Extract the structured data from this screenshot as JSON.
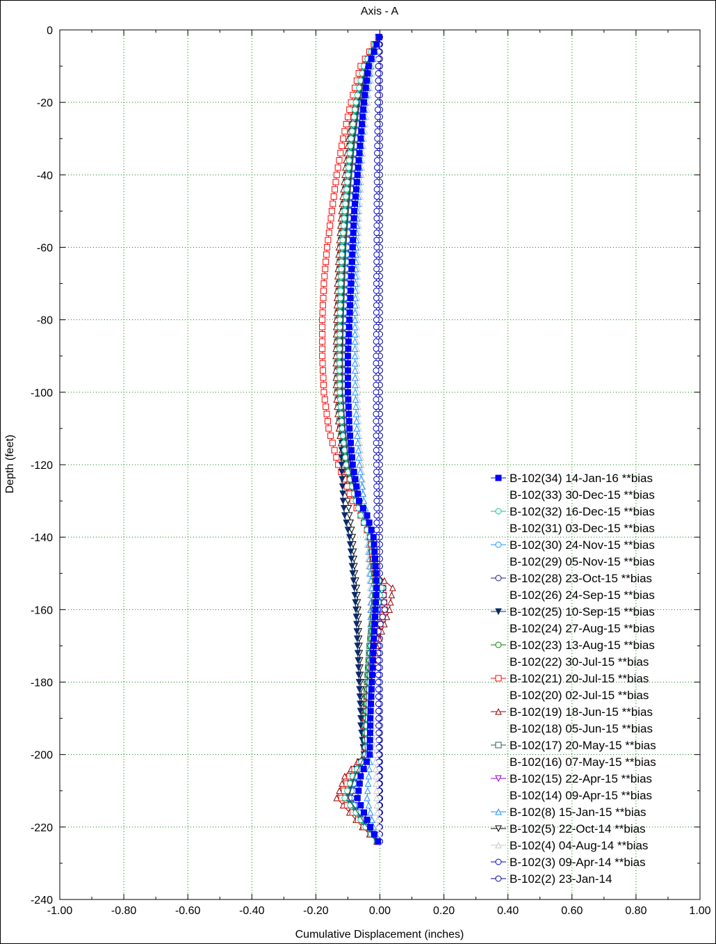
{
  "chart_data": {
    "type": "line",
    "title": "Axis - A",
    "xlabel": "Cumulative Displacement (inches)",
    "ylabel": "Depth (feet)",
    "xlim": [
      -1.0,
      1.0
    ],
    "ylim": [
      -240,
      0
    ],
    "xticks": [
      -1.0,
      -0.8,
      -0.6,
      -0.4,
      -0.2,
      0.0,
      0.2,
      0.4,
      0.6,
      0.8,
      1.0
    ],
    "xtick_labels": [
      "-1.00",
      "-0.80",
      "-0.60",
      "-0.40",
      "-0.20",
      "0.00",
      "0.20",
      "0.40",
      "0.60",
      "0.80",
      "1.00"
    ],
    "yticks": [
      0,
      -20,
      -40,
      -60,
      -80,
      -100,
      -120,
      -140,
      -160,
      -180,
      -200,
      -220,
      -240
    ],
    "ytick_labels": [
      "0",
      "-20",
      "-40",
      "-60",
      "-80",
      "-100",
      "-120",
      "-140",
      "-160",
      "-180",
      "-200",
      "-220",
      "-240"
    ],
    "grid": true,
    "legend_position": "right",
    "depth_profile": [
      -2,
      -10,
      -20,
      -30,
      -40,
      -50,
      -60,
      -70,
      -80,
      -90,
      -100,
      -110,
      -120,
      -130,
      -134,
      -140,
      -150,
      -154,
      -160,
      -170,
      -180,
      -190,
      -192,
      -200,
      -206,
      -212,
      -216,
      -220,
      -224
    ],
    "series": [
      {
        "name": "B-102(34) 14-Jan-16 **bias",
        "color": "#0000ff",
        "marker": "square-filled",
        "x": [
          -0.002,
          -0.035,
          -0.05,
          -0.06,
          -0.07,
          -0.08,
          -0.085,
          -0.09,
          -0.095,
          -0.1,
          -0.1,
          -0.095,
          -0.085,
          -0.065,
          -0.04,
          -0.02,
          -0.012,
          -0.01,
          -0.014,
          -0.02,
          -0.025,
          -0.03,
          -0.03,
          -0.032,
          -0.06,
          -0.07,
          -0.05,
          -0.03,
          -0.006
        ]
      },
      {
        "name": "B-102(33) 30-Dec-15 **bias",
        "color": "#3a3a3a",
        "marker": "none",
        "x": [
          -0.004,
          -0.045,
          -0.065,
          -0.08,
          -0.09,
          -0.1,
          -0.108,
          -0.112,
          -0.116,
          -0.118,
          -0.118,
          -0.11,
          -0.098,
          -0.072,
          -0.045,
          -0.025,
          -0.015,
          -0.012,
          -0.018,
          -0.03,
          -0.04,
          -0.045,
          -0.05,
          -0.045,
          -0.08,
          -0.1,
          -0.07,
          -0.04,
          -0.008
        ]
      },
      {
        "name": "B-102(32) 16-Dec-15 **bias",
        "color": "#00c890",
        "marker": "circle",
        "x": [
          -0.004,
          -0.05,
          -0.075,
          -0.09,
          -0.1,
          -0.11,
          -0.118,
          -0.122,
          -0.125,
          -0.126,
          -0.125,
          -0.118,
          -0.105,
          -0.075,
          -0.06,
          -0.03,
          -0.012,
          0.005,
          -0.01,
          -0.028,
          -0.036,
          -0.042,
          -0.045,
          -0.045,
          -0.085,
          -0.11,
          -0.075,
          -0.045,
          -0.009
        ]
      },
      {
        "name": "B-102(31) 03-Dec-15 **bias",
        "color": "#505050",
        "marker": "none",
        "x": [
          -0.003,
          -0.042,
          -0.062,
          -0.078,
          -0.088,
          -0.098,
          -0.106,
          -0.11,
          -0.114,
          -0.116,
          -0.116,
          -0.108,
          -0.096,
          -0.07,
          -0.046,
          -0.024,
          -0.014,
          -0.01,
          -0.016,
          -0.028,
          -0.038,
          -0.044,
          -0.048,
          -0.044,
          -0.078,
          -0.098,
          -0.068,
          -0.04,
          -0.007
        ]
      },
      {
        "name": "B-102(30) 24-Nov-15 **bias",
        "color": "#1e90ff",
        "marker": "circle",
        "x": [
          -0.003,
          -0.04,
          -0.06,
          -0.075,
          -0.085,
          -0.095,
          -0.103,
          -0.108,
          -0.112,
          -0.114,
          -0.114,
          -0.106,
          -0.094,
          -0.068,
          -0.05,
          -0.026,
          -0.012,
          -0.008,
          -0.014,
          -0.026,
          -0.035,
          -0.04,
          -0.044,
          -0.042,
          -0.075,
          -0.095,
          -0.066,
          -0.038,
          -0.007
        ]
      },
      {
        "name": "B-102(29) 05-Nov-15 **bias",
        "color": "#606060",
        "marker": "none",
        "x": [
          -0.003,
          -0.038,
          -0.058,
          -0.072,
          -0.082,
          -0.092,
          -0.1,
          -0.105,
          -0.11,
          -0.112,
          -0.112,
          -0.105,
          -0.092,
          -0.066,
          -0.044,
          -0.022,
          -0.013,
          -0.009,
          -0.015,
          -0.026,
          -0.034,
          -0.04,
          -0.044,
          -0.04,
          -0.072,
          -0.09,
          -0.064,
          -0.036,
          -0.006
        ]
      },
      {
        "name": "B-102(28) 23-Oct-15 **bias",
        "color": "#1a1a8c",
        "marker": "circle",
        "x": [
          -0.003,
          -0.036,
          -0.055,
          -0.07,
          -0.08,
          -0.09,
          -0.098,
          -0.103,
          -0.108,
          -0.11,
          -0.11,
          -0.103,
          -0.09,
          -0.064,
          -0.04,
          -0.02,
          -0.012,
          0.01,
          0.015,
          -0.018,
          -0.028,
          -0.036,
          -0.04,
          -0.038,
          -0.07,
          -0.088,
          -0.062,
          -0.034,
          -0.006
        ]
      },
      {
        "name": "B-102(26) 24-Sep-15 **bias",
        "color": "#707070",
        "marker": "none",
        "x": [
          -0.003,
          -0.04,
          -0.06,
          -0.075,
          -0.085,
          -0.095,
          -0.103,
          -0.108,
          -0.112,
          -0.115,
          -0.115,
          -0.108,
          -0.095,
          -0.07,
          -0.046,
          -0.024,
          -0.014,
          -0.01,
          -0.016,
          -0.028,
          -0.036,
          -0.042,
          -0.046,
          -0.042,
          -0.076,
          -0.095,
          -0.066,
          -0.038,
          -0.007
        ]
      },
      {
        "name": "B-102(25) 10-Sep-15 **bias",
        "color": "#0a2a6a",
        "marker": "triangle-down-filled",
        "x": [
          -0.004,
          -0.045,
          -0.066,
          -0.08,
          -0.09,
          -0.1,
          -0.108,
          -0.113,
          -0.117,
          -0.12,
          -0.12,
          -0.118,
          -0.12,
          -0.115,
          -0.11,
          -0.095,
          -0.085,
          -0.08,
          -0.075,
          -0.07,
          -0.065,
          -0.06,
          -0.06,
          -0.05,
          -0.085,
          -0.105,
          -0.075,
          -0.045,
          -0.008
        ]
      },
      {
        "name": "B-102(24) 27-Aug-15 **bias",
        "color": "#808080",
        "marker": "none",
        "x": [
          -0.004,
          -0.044,
          -0.064,
          -0.078,
          -0.088,
          -0.098,
          -0.106,
          -0.111,
          -0.115,
          -0.118,
          -0.118,
          -0.11,
          -0.098,
          -0.072,
          -0.046,
          -0.024,
          -0.014,
          -0.01,
          -0.016,
          -0.028,
          -0.036,
          -0.042,
          -0.046,
          -0.042,
          -0.078,
          -0.098,
          -0.068,
          -0.04,
          -0.007
        ]
      },
      {
        "name": "B-102(23) 13-Aug-15 **bias",
        "color": "#008000",
        "marker": "circle",
        "x": [
          -0.004,
          -0.046,
          -0.068,
          -0.082,
          -0.092,
          -0.102,
          -0.11,
          -0.115,
          -0.119,
          -0.122,
          -0.122,
          -0.114,
          -0.1,
          -0.074,
          -0.048,
          -0.026,
          -0.016,
          -0.012,
          -0.018,
          -0.03,
          -0.038,
          -0.044,
          -0.048,
          -0.044,
          -0.08,
          -0.1,
          -0.07,
          -0.042,
          -0.008
        ]
      },
      {
        "name": "B-102(22) 30-Jul-15 **bias",
        "color": "#909090",
        "marker": "none",
        "x": [
          -0.004,
          -0.048,
          -0.07,
          -0.085,
          -0.095,
          -0.105,
          -0.113,
          -0.118,
          -0.122,
          -0.125,
          -0.125,
          -0.116,
          -0.102,
          -0.076,
          -0.05,
          -0.028,
          -0.017,
          -0.012,
          -0.019,
          -0.031,
          -0.04,
          -0.046,
          -0.05,
          -0.046,
          -0.082,
          -0.102,
          -0.072,
          -0.043,
          -0.008
        ]
      },
      {
        "name": "B-102(21) 20-Jul-15 **bias",
        "color": "#ff0000",
        "marker": "square",
        "x": [
          -0.005,
          -0.06,
          -0.09,
          -0.115,
          -0.135,
          -0.15,
          -0.165,
          -0.175,
          -0.18,
          -0.18,
          -0.175,
          -0.16,
          -0.13,
          -0.085,
          -0.06,
          -0.03,
          -0.015,
          0.01,
          0.015,
          -0.02,
          -0.035,
          -0.045,
          -0.05,
          -0.048,
          -0.095,
          -0.12,
          -0.085,
          -0.05,
          -0.009
        ]
      },
      {
        "name": "B-102(20) 02-Jul-15 **bias",
        "color": "#a0a0a0",
        "marker": "none",
        "x": [
          -0.004,
          -0.05,
          -0.075,
          -0.09,
          -0.1,
          -0.11,
          -0.118,
          -0.123,
          -0.127,
          -0.13,
          -0.13,
          -0.12,
          -0.105,
          -0.078,
          -0.052,
          -0.028,
          -0.017,
          -0.012,
          -0.019,
          -0.031,
          -0.04,
          -0.046,
          -0.05,
          -0.046,
          -0.085,
          -0.105,
          -0.074,
          -0.044,
          -0.008
        ]
      },
      {
        "name": "B-102(19) 18-Jun-15 **bias",
        "color": "#8b0000",
        "marker": "triangle",
        "x": [
          -0.004,
          -0.055,
          -0.08,
          -0.098,
          -0.11,
          -0.12,
          -0.128,
          -0.133,
          -0.136,
          -0.138,
          -0.137,
          -0.128,
          -0.112,
          -0.08,
          -0.055,
          -0.028,
          -0.012,
          0.04,
          0.03,
          -0.01,
          -0.03,
          -0.04,
          -0.045,
          -0.05,
          -0.11,
          -0.135,
          -0.095,
          -0.055,
          -0.01
        ]
      },
      {
        "name": "B-102(18) 05-Jun-15 **bias",
        "color": "#b0b0b0",
        "marker": "none",
        "x": [
          -0.004,
          -0.05,
          -0.074,
          -0.09,
          -0.1,
          -0.11,
          -0.118,
          -0.123,
          -0.127,
          -0.13,
          -0.13,
          -0.12,
          -0.105,
          -0.078,
          -0.052,
          -0.028,
          -0.017,
          -0.012,
          -0.019,
          -0.031,
          -0.04,
          -0.046,
          -0.05,
          -0.046,
          -0.085,
          -0.105,
          -0.074,
          -0.044,
          -0.008
        ]
      },
      {
        "name": "B-102(17) 20-May-15 **bias",
        "color": "#1f5f4f",
        "marker": "square",
        "x": [
          -0.004,
          -0.05,
          -0.075,
          -0.092,
          -0.104,
          -0.115,
          -0.123,
          -0.128,
          -0.132,
          -0.134,
          -0.133,
          -0.124,
          -0.108,
          -0.08,
          -0.054,
          -0.03,
          -0.018,
          -0.012,
          -0.02,
          -0.032,
          -0.04,
          -0.046,
          -0.05,
          -0.046,
          -0.088,
          -0.108,
          -0.076,
          -0.045,
          -0.008
        ]
      },
      {
        "name": "B-102(16) 07-May-15 **bias",
        "color": "#c0c0c0",
        "marker": "none",
        "x": [
          -0.004,
          -0.048,
          -0.072,
          -0.088,
          -0.098,
          -0.108,
          -0.116,
          -0.121,
          -0.125,
          -0.128,
          -0.128,
          -0.118,
          -0.104,
          -0.077,
          -0.05,
          -0.027,
          -0.016,
          -0.011,
          -0.018,
          -0.03,
          -0.039,
          -0.045,
          -0.049,
          -0.045,
          -0.083,
          -0.103,
          -0.073,
          -0.043,
          -0.008
        ]
      },
      {
        "name": "B-102(15) 22-Apr-15 **bias",
        "color": "#9400d3",
        "marker": "triangle-down",
        "x": [
          -0.003,
          -0.042,
          -0.062,
          -0.075,
          -0.085,
          -0.095,
          -0.103,
          -0.108,
          -0.112,
          -0.115,
          -0.115,
          -0.108,
          -0.095,
          -0.07,
          -0.045,
          -0.024,
          -0.014,
          -0.01,
          -0.016,
          -0.028,
          -0.036,
          -0.042,
          -0.046,
          -0.042,
          -0.075,
          -0.095,
          -0.066,
          -0.038,
          -0.007
        ]
      },
      {
        "name": "B-102(14) 09-Apr-15 **bias",
        "color": "#b8b8b8",
        "marker": "none",
        "x": [
          -0.003,
          -0.04,
          -0.06,
          -0.074,
          -0.084,
          -0.094,
          -0.102,
          -0.107,
          -0.111,
          -0.114,
          -0.114,
          -0.106,
          -0.094,
          -0.068,
          -0.044,
          -0.023,
          -0.013,
          -0.009,
          -0.015,
          -0.027,
          -0.035,
          -0.041,
          -0.045,
          -0.041,
          -0.073,
          -0.092,
          -0.064,
          -0.037,
          -0.007
        ]
      },
      {
        "name": "B-102(8) 15-Jan-15 **bias",
        "color": "#1e90ff",
        "marker": "triangle",
        "x": [
          -0.002,
          -0.028,
          -0.045,
          -0.056,
          -0.064,
          -0.07,
          -0.074,
          -0.076,
          -0.078,
          -0.078,
          -0.077,
          -0.072,
          -0.064,
          -0.05,
          -0.04,
          -0.035,
          -0.03,
          -0.025,
          -0.028,
          -0.03,
          -0.034,
          -0.038,
          -0.04,
          -0.03,
          -0.035,
          -0.04,
          -0.03,
          -0.02,
          -0.005
        ]
      },
      {
        "name": "B-102(5) 22-Oct-14 **bias",
        "color": "#000000",
        "marker": "triangle-down",
        "x": [
          -0.004,
          -0.046,
          -0.068,
          -0.084,
          -0.095,
          -0.105,
          -0.113,
          -0.118,
          -0.122,
          -0.125,
          -0.125,
          -0.12,
          -0.11,
          -0.1,
          -0.095,
          -0.085,
          -0.078,
          -0.072,
          -0.068,
          -0.064,
          -0.06,
          -0.056,
          -0.055,
          -0.048,
          -0.08,
          -0.098,
          -0.07,
          -0.042,
          -0.008
        ]
      },
      {
        "name": "B-102(4) 04-Aug-14 **bias",
        "color": "#c8c8c8",
        "marker": "triangle",
        "x": [
          -0.002,
          -0.022,
          -0.038,
          -0.05,
          -0.058,
          -0.064,
          -0.068,
          -0.07,
          -0.072,
          -0.072,
          -0.07,
          -0.066,
          -0.058,
          -0.05,
          -0.045,
          -0.04,
          -0.034,
          -0.03,
          -0.03,
          -0.028,
          -0.026,
          -0.022,
          -0.02,
          -0.015,
          -0.012,
          -0.01,
          -0.008,
          -0.005,
          -0.002
        ]
      },
      {
        "name": "B-102(3) 09-Apr-14 **bias",
        "color": "#0000cd",
        "marker": "circle",
        "x": [
          -0.002,
          -0.005,
          -0.006,
          -0.008,
          -0.009,
          -0.01,
          -0.01,
          -0.011,
          -0.011,
          -0.012,
          -0.012,
          -0.012,
          -0.011,
          -0.01,
          -0.01,
          -0.01,
          -0.008,
          -0.007,
          -0.006,
          -0.005,
          -0.005,
          -0.004,
          -0.004,
          -0.003,
          -0.003,
          -0.002,
          -0.002,
          -0.001,
          0.0
        ]
      },
      {
        "name": "B-102(2) 23-Jan-14",
        "color": "#00008b",
        "marker": "circle",
        "x": [
          0.0,
          0.0,
          0.0,
          0.0,
          0.0,
          0.0,
          0.0,
          0.0,
          0.0,
          0.0,
          0.0,
          0.0,
          0.0,
          0.0,
          0.0,
          0.0,
          0.0,
          0.0,
          0.0,
          0.0,
          0.0,
          0.0,
          0.0,
          0.0,
          0.0,
          0.0,
          0.0,
          0.0,
          0.0
        ]
      }
    ]
  }
}
